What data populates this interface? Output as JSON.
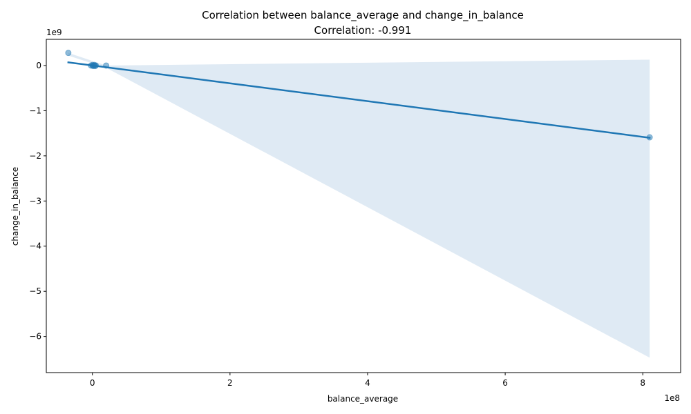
{
  "chart_data": {
    "type": "scatter",
    "title": "Correlation between balance_average and change_in_balance",
    "subtitle": "Correlation: -0.991",
    "xlabel": "balance_average",
    "ylabel": "change_in_balance",
    "x_offset_label": "1e8",
    "y_offset_label": "1e9",
    "x_scale": 100000000,
    "y_scale": 1000000000,
    "xlim": [
      -0.67,
      8.55
    ],
    "ylim": [
      -6.8,
      0.58
    ],
    "x_ticks": [
      0,
      2,
      4,
      6,
      8
    ],
    "y_ticks": [
      0,
      -1,
      -2,
      -3,
      -4,
      -5,
      -6
    ],
    "x_tick_labels": [
      "0",
      "2",
      "4",
      "6",
      "8"
    ],
    "y_tick_labels": [
      "0",
      "−1",
      "−2",
      "−3",
      "−4",
      "−5",
      "−6"
    ],
    "grid": false,
    "point_color": "#1f77b4",
    "point_opacity": 0.5,
    "points": [
      {
        "x": -0.35,
        "y": 0.28
      },
      {
        "x": -0.02,
        "y": 0.0
      },
      {
        "x": 0.0,
        "y": 0.01
      },
      {
        "x": 0.01,
        "y": -0.01
      },
      {
        "x": 0.02,
        "y": 0.0
      },
      {
        "x": 0.03,
        "y": 0.01
      },
      {
        "x": 0.04,
        "y": -0.01
      },
      {
        "x": 0.05,
        "y": 0.0
      },
      {
        "x": 0.2,
        "y": 0.0
      },
      {
        "x": 8.1,
        "y": -1.59
      }
    ],
    "regression": {
      "line_color": "#1f77b4",
      "x": [
        -0.35,
        8.1
      ],
      "y": [
        0.07,
        -1.6
      ]
    },
    "confidence_band": {
      "fill_color": "#dfeaf4",
      "upper": [
        {
          "x": -0.35,
          "y": 0.28
        },
        {
          "x": 0.2,
          "y": 0.0
        },
        {
          "x": 8.1,
          "y": 0.13
        }
      ],
      "lower": [
        {
          "x": -0.35,
          "y": 0.22
        },
        {
          "x": 0.2,
          "y": -0.05
        },
        {
          "x": 8.1,
          "y": -6.47
        }
      ]
    }
  }
}
